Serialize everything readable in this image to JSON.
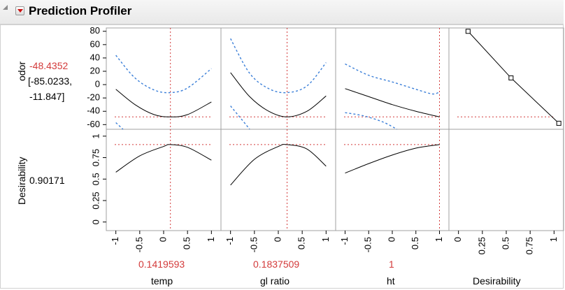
{
  "header": {
    "title": "Prediction Profiler",
    "menu_icon": "red-triangle-menu-icon",
    "disclosure_icon": "disclosure-triangle-icon"
  },
  "colors": {
    "prediction": "#000000",
    "confidence": "#3b7fd8",
    "reference": "#d33a3a",
    "current_value": "#d33a3a"
  },
  "responses": [
    {
      "name": "odor",
      "current": "-48.4352",
      "interval_low": "[-85.0233,",
      "interval_high": "-11.847]",
      "y_ticks": [
        "80",
        "60",
        "40",
        "20",
        "0",
        "-20",
        "-40",
        "-60"
      ],
      "y_range": [
        -67,
        85
      ]
    },
    {
      "name": "Desirability",
      "current": "0.90171",
      "y_ticks": [
        "1",
        "0.75",
        "0.5",
        "0.25",
        "0"
      ],
      "y_range": [
        -0.1,
        1.08
      ]
    }
  ],
  "factors": [
    {
      "name": "temp",
      "current": "0.1419593",
      "current_num": 0.1419593,
      "x_ticks": [
        "-1",
        "-0.5",
        "0",
        "0.5",
        "1"
      ],
      "x_range": [
        -1.2,
        1.2
      ]
    },
    {
      "name": "gl ratio",
      "current": "0.1837509",
      "current_num": 0.1837509,
      "x_ticks": [
        "-1",
        "-0.5",
        "0",
        "0.5",
        "1"
      ],
      "x_range": [
        -1.2,
        1.2
      ]
    },
    {
      "name": "ht",
      "current": "1",
      "current_num": 1,
      "x_ticks": [
        "-1",
        "-0.5",
        "0",
        "0.5",
        "1"
      ],
      "x_range": [
        -1.2,
        1.2
      ]
    },
    {
      "name": "Desirability",
      "current": "",
      "x_ticks": [
        "0",
        "0.25",
        "0.5",
        "0.75",
        "1"
      ],
      "x_range": [
        -0.1,
        1.1
      ]
    }
  ],
  "chart_data": {
    "type": "line",
    "cells": [
      {
        "response": "odor",
        "factor": "temp",
        "prediction": {
          "x": [
            -1,
            -0.6,
            -0.2,
            0.14,
            0.5,
            1
          ],
          "y": [
            -7,
            -30,
            -45,
            -48.4,
            -45,
            -26
          ]
        },
        "upper": {
          "x": [
            -1,
            -0.6,
            -0.2,
            0.14,
            0.5,
            1
          ],
          "y": [
            44,
            10,
            -8,
            -12,
            -5,
            24
          ]
        },
        "lower": {
          "x": [
            -1,
            -0.85
          ],
          "y": [
            -57,
            -67
          ]
        }
      },
      {
        "response": "odor",
        "factor": "gl ratio",
        "prediction": {
          "x": [
            -1,
            -0.6,
            -0.2,
            0.18,
            0.6,
            1
          ],
          "y": [
            18,
            -18,
            -40,
            -48.4,
            -40,
            -17
          ]
        },
        "upper": {
          "x": [
            -1,
            -0.6,
            -0.2,
            0.18,
            0.6,
            1
          ],
          "y": [
            69,
            17,
            -6,
            -12,
            -2,
            33
          ]
        },
        "lower": {
          "x": [
            -1,
            -0.7,
            -0.6
          ],
          "y": [
            -32,
            -58,
            -67
          ]
        }
      },
      {
        "response": "odor",
        "factor": "ht",
        "prediction": {
          "x": [
            -1,
            -0.5,
            0,
            0.5,
            1
          ],
          "y": [
            -6,
            -18,
            -30,
            -40,
            -48.4
          ]
        },
        "upper": {
          "x": [
            -1,
            -0.5,
            0,
            0.5,
            0.85,
            1
          ],
          "y": [
            31,
            14,
            4,
            -7,
            -14,
            -11
          ]
        },
        "lower": {
          "x": [
            -1,
            -0.6,
            -0.2,
            0.1
          ],
          "y": [
            -42,
            -47,
            -56,
            -67
          ]
        }
      },
      {
        "response": "odor",
        "factor": "Desirability",
        "desirability_function": {
          "x": [
            0.1,
            0.55,
            1.05
          ],
          "y": [
            80,
            10,
            -58
          ]
        },
        "markers": [
          0.1,
          0.55,
          1.05
        ]
      },
      {
        "response": "Desirability",
        "factor": "temp",
        "prediction": {
          "x": [
            -1,
            -0.5,
            0,
            0.14,
            0.5,
            1
          ],
          "y": [
            0.58,
            0.77,
            0.88,
            0.9017,
            0.87,
            0.72
          ]
        }
      },
      {
        "response": "Desirability",
        "factor": "gl ratio",
        "prediction": {
          "x": [
            -1,
            -0.5,
            0,
            0.18,
            0.6,
            1
          ],
          "y": [
            0.43,
            0.73,
            0.88,
            0.9017,
            0.85,
            0.65
          ]
        }
      },
      {
        "response": "Desirability",
        "factor": "ht",
        "prediction": {
          "x": [
            -1,
            -0.5,
            0,
            0.5,
            1
          ],
          "y": [
            0.57,
            0.68,
            0.78,
            0.86,
            0.9017
          ]
        }
      }
    ],
    "reference_lines": {
      "odor_current": -48.4352,
      "desirability_current": 0.90171
    }
  }
}
